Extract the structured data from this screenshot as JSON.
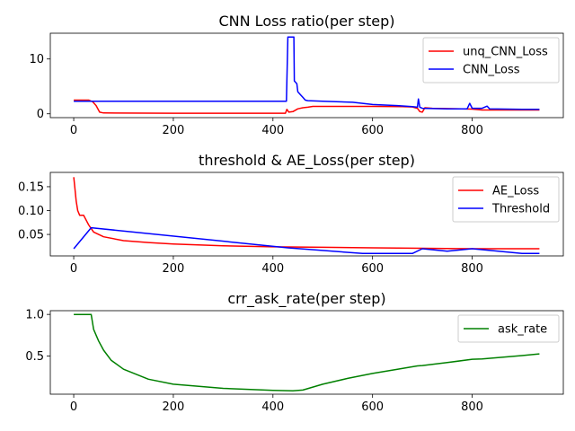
{
  "chart_data": [
    {
      "type": "line",
      "title": "CNN Loss ratio(per step)",
      "xlabel": "",
      "ylabel": "",
      "xlim": [
        -47,
        983
      ],
      "ylim": [
        -0.7,
        14.7
      ],
      "xticks": [
        0,
        200,
        400,
        600,
        800
      ],
      "yticks": [
        0,
        10
      ],
      "legend": "top-right",
      "series": [
        {
          "name": "unq_CNN_Loss",
          "color": "#ff0000",
          "points": [
            [
              0,
              2.5
            ],
            [
              30,
              2.5
            ],
            [
              38,
              2.2
            ],
            [
              45,
              1.5
            ],
            [
              52,
              0.3
            ],
            [
              60,
              0.15
            ],
            [
              200,
              0.1
            ],
            [
              400,
              0.1
            ],
            [
              425,
              0.1
            ],
            [
              428,
              0.8
            ],
            [
              432,
              0.3
            ],
            [
              440,
              0.4
            ],
            [
              450,
              0.9
            ],
            [
              460,
              1.1
            ],
            [
              470,
              1.2
            ],
            [
              480,
              1.35
            ],
            [
              500,
              1.35
            ],
            [
              600,
              1.35
            ],
            [
              660,
              1.3
            ],
            [
              680,
              1.25
            ],
            [
              690,
              1.0
            ],
            [
              695,
              0.4
            ],
            [
              700,
              0.3
            ],
            [
              705,
              1.1
            ],
            [
              720,
              1.0
            ],
            [
              800,
              0.85
            ],
            [
              820,
              0.7
            ],
            [
              935,
              0.7
            ]
          ]
        },
        {
          "name": "CNN_Loss",
          "color": "#0000ff",
          "points": [
            [
              0,
              2.3
            ],
            [
              100,
              2.3
            ],
            [
              200,
              2.3
            ],
            [
              300,
              2.3
            ],
            [
              400,
              2.3
            ],
            [
              427,
              2.3
            ],
            [
              430,
              14.0
            ],
            [
              442,
              14.0
            ],
            [
              443,
              6.0
            ],
            [
              448,
              5.5
            ],
            [
              450,
              4.0
            ],
            [
              455,
              3.5
            ],
            [
              460,
              3.0
            ],
            [
              465,
              2.5
            ],
            [
              470,
              2.4
            ],
            [
              500,
              2.3
            ],
            [
              560,
              2.1
            ],
            [
              600,
              1.7
            ],
            [
              650,
              1.5
            ],
            [
              680,
              1.3
            ],
            [
              690,
              1.2
            ],
            [
              692,
              2.7
            ],
            [
              695,
              1.2
            ],
            [
              700,
              1.0
            ],
            [
              750,
              0.9
            ],
            [
              790,
              0.9
            ],
            [
              795,
              1.9
            ],
            [
              800,
              1.0
            ],
            [
              820,
              1.0
            ],
            [
              830,
              1.4
            ],
            [
              835,
              0.9
            ],
            [
              900,
              0.8
            ],
            [
              935,
              0.8
            ]
          ]
        }
      ]
    },
    {
      "type": "line",
      "title": "threshold & AE_Loss(per step)",
      "xlabel": "",
      "ylabel": "",
      "xlim": [
        -47,
        983
      ],
      "ylim": [
        0.005,
        0.18
      ],
      "xticks": [
        0,
        200,
        400,
        600,
        800
      ],
      "yticks": [
        0.05,
        0.1,
        0.15
      ],
      "yticklabels": [
        "0.05",
        "0.10",
        "0.15"
      ],
      "legend": "top-right",
      "series": [
        {
          "name": "AE_Loss",
          "color": "#ff0000",
          "points": [
            [
              0,
              0.17
            ],
            [
              2,
              0.15
            ],
            [
              5,
              0.12
            ],
            [
              8,
              0.1
            ],
            [
              12,
              0.09
            ],
            [
              20,
              0.09
            ],
            [
              30,
              0.07
            ],
            [
              40,
              0.055
            ],
            [
              60,
              0.045
            ],
            [
              100,
              0.037
            ],
            [
              150,
              0.033
            ],
            [
              200,
              0.03
            ],
            [
              300,
              0.026
            ],
            [
              400,
              0.024
            ],
            [
              500,
              0.023
            ],
            [
              600,
              0.022
            ],
            [
              700,
              0.021
            ],
            [
              800,
              0.02
            ],
            [
              935,
              0.02
            ]
          ]
        },
        {
          "name": "Threshold",
          "color": "#0000ff",
          "points": [
            [
              0,
              0.02
            ],
            [
              35,
              0.064
            ],
            [
              430,
              0.022
            ],
            [
              580,
              0.01
            ],
            [
              680,
              0.01
            ],
            [
              700,
              0.02
            ],
            [
              750,
              0.015
            ],
            [
              800,
              0.02
            ],
            [
              900,
              0.01
            ],
            [
              935,
              0.01
            ]
          ]
        }
      ]
    },
    {
      "type": "line",
      "title": "crr_ask_rate(per step)",
      "xlabel": "",
      "ylabel": "",
      "xlim": [
        -47,
        983
      ],
      "ylim": [
        0.04,
        1.045
      ],
      "xticks": [
        0,
        200,
        400,
        600,
        800
      ],
      "yticks": [
        0.5,
        1.0
      ],
      "yticklabels": [
        "0.5",
        "1.0"
      ],
      "legend": "top-right",
      "series": [
        {
          "name": "ask_rate",
          "color": "#008000",
          "points": [
            [
              0,
              1.0
            ],
            [
              35,
              1.0
            ],
            [
              40,
              0.82
            ],
            [
              50,
              0.68
            ],
            [
              60,
              0.57
            ],
            [
              75,
              0.45
            ],
            [
              100,
              0.34
            ],
            [
              150,
              0.22
            ],
            [
              200,
              0.16
            ],
            [
              300,
              0.11
            ],
            [
              400,
              0.085
            ],
            [
              440,
              0.08
            ],
            [
              460,
              0.09
            ],
            [
              500,
              0.16
            ],
            [
              550,
              0.23
            ],
            [
              600,
              0.29
            ],
            [
              650,
              0.34
            ],
            [
              690,
              0.38
            ],
            [
              700,
              0.385
            ],
            [
              750,
              0.42
            ],
            [
              800,
              0.46
            ],
            [
              820,
              0.465
            ],
            [
              900,
              0.505
            ],
            [
              935,
              0.525
            ]
          ]
        }
      ]
    }
  ]
}
